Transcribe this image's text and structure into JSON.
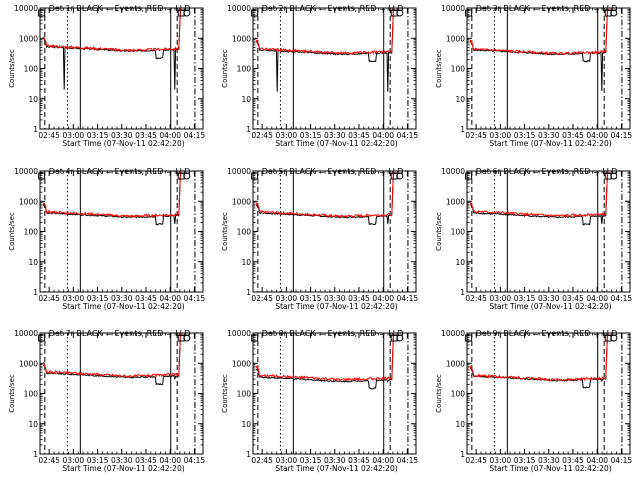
{
  "chart_data": {
    "type": "line",
    "layout": "3x3 grid",
    "ylabel": "Counts/sec",
    "xlabel": "Start Time (07-Nov-11 02:42:20)",
    "x_ticks": [
      "02:45",
      "03:00",
      "03:15",
      "03:30",
      "03:45",
      "04:00",
      "04:15"
    ],
    "x_range_minutes": [
      -3,
      98
    ],
    "y_scale": "log",
    "y_ticks": [
      "1",
      "10",
      "100",
      "1000",
      "10000"
    ],
    "ylim": [
      1,
      10000
    ],
    "grid": false,
    "legend": "in panel titles",
    "series_colors": {
      "events": "#000000",
      "lld": "#ff0000"
    },
    "panels": [
      {
        "title": "Det 1r BLACK = Events, RED = LLD",
        "event_level": 420,
        "lld_level": 450,
        "spike_depth": 20,
        "rise_level": 12000
      },
      {
        "title": "Det 2r BLACK = Events, RED = LLD",
        "event_level": 330,
        "lld_level": 360,
        "spike_depth": 17,
        "rise_level": 12000
      },
      {
        "title": "Det 3r BLACK = Events, RED = LLD",
        "event_level": 330,
        "lld_level": 350,
        "spike_depth": 18,
        "rise_level": 12000
      },
      {
        "title": "Det 4r BLACK = Events, RED = LLD",
        "event_level": 330,
        "lld_level": 360,
        "spike_depth": 180,
        "rise_level": 12000
      },
      {
        "title": "Det 5r BLACK = Events, RED = LLD",
        "event_level": 330,
        "lld_level": 360,
        "spike_depth": 180,
        "rise_level": 12000
      },
      {
        "title": "Det 6r BLACK = Events, RED = LLD",
        "event_level": 330,
        "lld_level": 370,
        "spike_depth": 180,
        "rise_level": 12000
      },
      {
        "title": "Det 7r BLACK = Events, RED = LLD",
        "event_level": 380,
        "lld_level": 420,
        "spike_depth": 300,
        "rise_level": 12000
      },
      {
        "title": "Det 8r BLACK = Events, RED = LLD",
        "event_level": 280,
        "lld_level": 320,
        "spike_depth": 250,
        "rise_level": 12000
      },
      {
        "title": "Det 9r BLACK = Events, RED = LLD",
        "event_level": 300,
        "lld_level": 320,
        "spike_depth": 260,
        "rise_level": 12000
      }
    ]
  }
}
